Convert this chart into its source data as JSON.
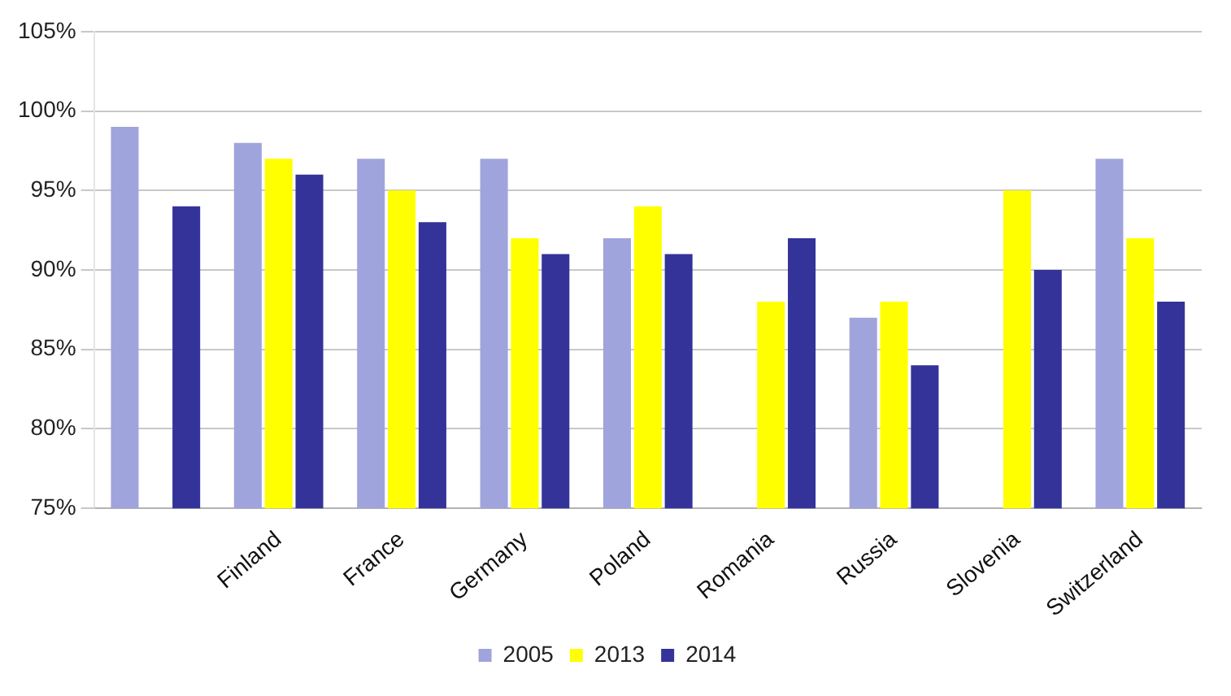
{
  "chart_data": {
    "type": "bar",
    "categories": [
      null,
      "Finland",
      "France",
      "Germany",
      "Poland",
      "Romania",
      "Russia",
      "Slovenia",
      "Switzerland"
    ],
    "series": [
      {
        "name": "2005",
        "color": "#a0a4dc",
        "values": [
          99,
          98,
          97,
          97,
          92,
          null,
          87,
          null,
          97
        ]
      },
      {
        "name": "2013",
        "color": "#ffff00",
        "values": [
          null,
          97,
          95,
          92,
          94,
          88,
          88,
          95,
          92
        ]
      },
      {
        "name": "2014",
        "color": "#333399",
        "values": [
          94,
          96,
          93,
          91,
          91,
          92,
          84,
          90,
          88
        ]
      }
    ],
    "ylim": [
      75,
      105
    ],
    "yticks": [
      {
        "value": 75,
        "label": "75%"
      },
      {
        "value": 80,
        "label": "80%"
      },
      {
        "value": 85,
        "label": "85%"
      },
      {
        "value": 90,
        "label": "90%"
      },
      {
        "value": 95,
        "label": "95%"
      },
      {
        "value": 100,
        "label": "100%"
      },
      {
        "value": 105,
        "label": "105%"
      }
    ],
    "grid": "y",
    "legend": "bottom"
  }
}
